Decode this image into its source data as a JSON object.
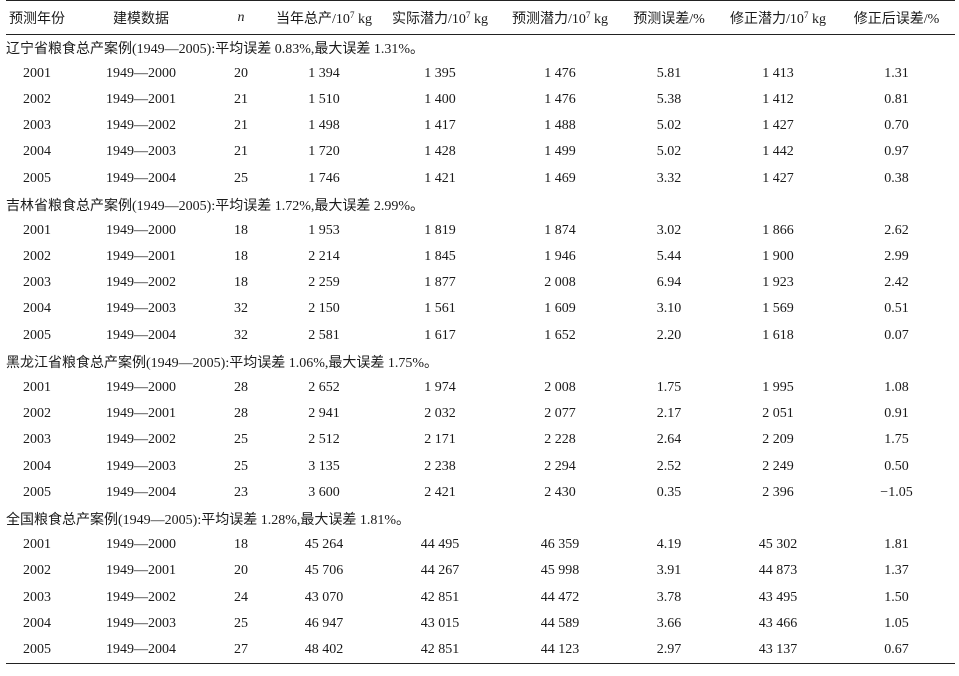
{
  "headers": {
    "year": "预测年份",
    "model_data": "建模数据",
    "n": "n",
    "current_output": "当年总产/10",
    "current_output_unit": " kg",
    "actual_potential": "实际潜力/10",
    "actual_potential_unit": " kg",
    "predicted_potential": "预测潜力/10",
    "predicted_potential_unit": " kg",
    "predicted_error": "预测误差/%",
    "corrected_potential": "修正潜力/10",
    "corrected_potential_unit": " kg",
    "corrected_error": "修正后误差/%",
    "exponent": "7"
  },
  "groups": [
    {
      "title": "辽宁省粮食总产案例(1949—2005):平均误差 0.83%,最大误差 1.31%。",
      "rows": [
        {
          "year": "2001",
          "model_data": "1949—2000",
          "n": "20",
          "current": "1 394",
          "actual": "1 395",
          "predicted": "1 476",
          "pred_err": "5.81",
          "corrected": "1 413",
          "corr_err": "1.31"
        },
        {
          "year": "2002",
          "model_data": "1949—2001",
          "n": "21",
          "current": "1 510",
          "actual": "1 400",
          "predicted": "1 476",
          "pred_err": "5.38",
          "corrected": "1 412",
          "corr_err": "0.81"
        },
        {
          "year": "2003",
          "model_data": "1949—2002",
          "n": "21",
          "current": "1 498",
          "actual": "1 417",
          "predicted": "1 488",
          "pred_err": "5.02",
          "corrected": "1 427",
          "corr_err": "0.70"
        },
        {
          "year": "2004",
          "model_data": "1949—2003",
          "n": "21",
          "current": "1 720",
          "actual": "1 428",
          "predicted": "1 499",
          "pred_err": "5.02",
          "corrected": "1 442",
          "corr_err": "0.97"
        },
        {
          "year": "2005",
          "model_data": "1949—2004",
          "n": "25",
          "current": "1 746",
          "actual": "1 421",
          "predicted": "1 469",
          "pred_err": "3.32",
          "corrected": "1 427",
          "corr_err": "0.38"
        }
      ]
    },
    {
      "title": "吉林省粮食总产案例(1949—2005):平均误差 1.72%,最大误差 2.99%。",
      "rows": [
        {
          "year": "2001",
          "model_data": "1949—2000",
          "n": "18",
          "current": "1 953",
          "actual": "1 819",
          "predicted": "1 874",
          "pred_err": "3.02",
          "corrected": "1 866",
          "corr_err": "2.62"
        },
        {
          "year": "2002",
          "model_data": "1949—2001",
          "n": "18",
          "current": "2 214",
          "actual": "1 845",
          "predicted": "1 946",
          "pred_err": "5.44",
          "corrected": "1 900",
          "corr_err": "2.99"
        },
        {
          "year": "2003",
          "model_data": "1949—2002",
          "n": "18",
          "current": "2 259",
          "actual": "1 877",
          "predicted": "2 008",
          "pred_err": "6.94",
          "corrected": "1 923",
          "corr_err": "2.42"
        },
        {
          "year": "2004",
          "model_data": "1949—2003",
          "n": "32",
          "current": "2 150",
          "actual": "1 561",
          "predicted": "1 609",
          "pred_err": "3.10",
          "corrected": "1 569",
          "corr_err": "0.51"
        },
        {
          "year": "2005",
          "model_data": "1949—2004",
          "n": "32",
          "current": "2 581",
          "actual": "1 617",
          "predicted": "1 652",
          "pred_err": "2.20",
          "corrected": "1 618",
          "corr_err": "0.07"
        }
      ]
    },
    {
      "title": "黑龙江省粮食总产案例(1949—2005):平均误差 1.06%,最大误差 1.75%。",
      "rows": [
        {
          "year": "2001",
          "model_data": "1949—2000",
          "n": "28",
          "current": "2 652",
          "actual": "1 974",
          "predicted": "2 008",
          "pred_err": "1.75",
          "corrected": "1 995",
          "corr_err": "1.08"
        },
        {
          "year": "2002",
          "model_data": "1949—2001",
          "n": "28",
          "current": "2 941",
          "actual": "2 032",
          "predicted": "2 077",
          "pred_err": "2.17",
          "corrected": "2 051",
          "corr_err": "0.91"
        },
        {
          "year": "2003",
          "model_data": "1949—2002",
          "n": "25",
          "current": "2 512",
          "actual": "2 171",
          "predicted": "2 228",
          "pred_err": "2.64",
          "corrected": "2 209",
          "corr_err": "1.75"
        },
        {
          "year": "2004",
          "model_data": "1949—2003",
          "n": "25",
          "current": "3 135",
          "actual": "2 238",
          "predicted": "2 294",
          "pred_err": "2.52",
          "corrected": "2 249",
          "corr_err": "0.50"
        },
        {
          "year": "2005",
          "model_data": "1949—2004",
          "n": "23",
          "current": "3 600",
          "actual": "2 421",
          "predicted": "2 430",
          "pred_err": "0.35",
          "corrected": "2 396",
          "corr_err": "−1.05"
        }
      ]
    },
    {
      "title": "全国粮食总产案例(1949—2005):平均误差 1.28%,最大误差 1.81%。",
      "rows": [
        {
          "year": "2001",
          "model_data": "1949—2000",
          "n": "18",
          "current": "45 264",
          "actual": "44 495",
          "predicted": "46 359",
          "pred_err": "4.19",
          "corrected": "45 302",
          "corr_err": "1.81"
        },
        {
          "year": "2002",
          "model_data": "1949—2001",
          "n": "20",
          "current": "45 706",
          "actual": "44 267",
          "predicted": "45 998",
          "pred_err": "3.91",
          "corrected": "44 873",
          "corr_err": "1.37"
        },
        {
          "year": "2003",
          "model_data": "1949—2002",
          "n": "24",
          "current": "43 070",
          "actual": "42 851",
          "predicted": "44 472",
          "pred_err": "3.78",
          "corrected": "43 495",
          "corr_err": "1.50"
        },
        {
          "year": "2004",
          "model_data": "1949—2003",
          "n": "25",
          "current": "46 947",
          "actual": "43 015",
          "predicted": "44 589",
          "pred_err": "3.66",
          "corrected": "43 466",
          "corr_err": "1.05"
        },
        {
          "year": "2005",
          "model_data": "1949—2004",
          "n": "27",
          "current": "48 402",
          "actual": "42 851",
          "predicted": "44 123",
          "pred_err": "2.97",
          "corrected": "43 137",
          "corr_err": "0.67"
        }
      ]
    }
  ]
}
